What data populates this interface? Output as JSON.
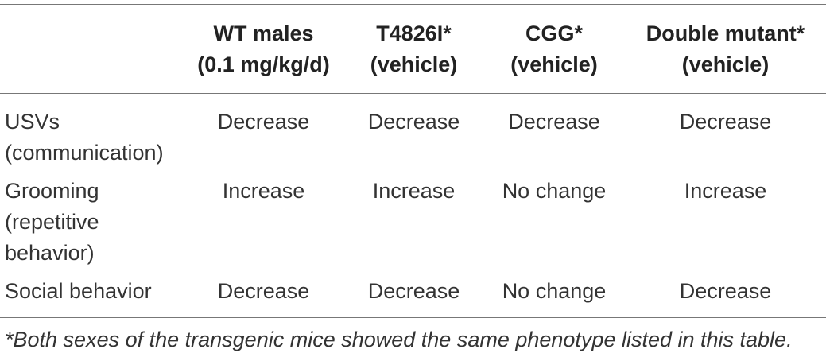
{
  "table": {
    "headers": [
      {
        "lines": [
          ""
        ]
      },
      {
        "lines": [
          "WT males",
          "(0.1 mg/kg/d)"
        ]
      },
      {
        "lines": [
          "T4826I*",
          "(vehicle)"
        ]
      },
      {
        "lines": [
          "CGG*",
          "(vehicle)"
        ]
      },
      {
        "lines": [
          "Double mutant*",
          "(vehicle)"
        ]
      }
    ],
    "rows": [
      {
        "label_lines": [
          "USVs",
          "(communication)"
        ],
        "cells": [
          "Decrease",
          "Decrease",
          "Decrease",
          "Decrease"
        ]
      },
      {
        "label_lines": [
          "Grooming",
          "(repetitive",
          "behavior)"
        ],
        "cells": [
          "Increase",
          "Increase",
          "No change",
          "Increase"
        ]
      },
      {
        "label_lines": [
          "Social behavior"
        ],
        "cells": [
          "Decrease",
          "Decrease",
          "No change",
          "Decrease"
        ]
      }
    ]
  },
  "footnote": "*Both sexes of the transgenic mice showed the same phenotype listed in this table."
}
